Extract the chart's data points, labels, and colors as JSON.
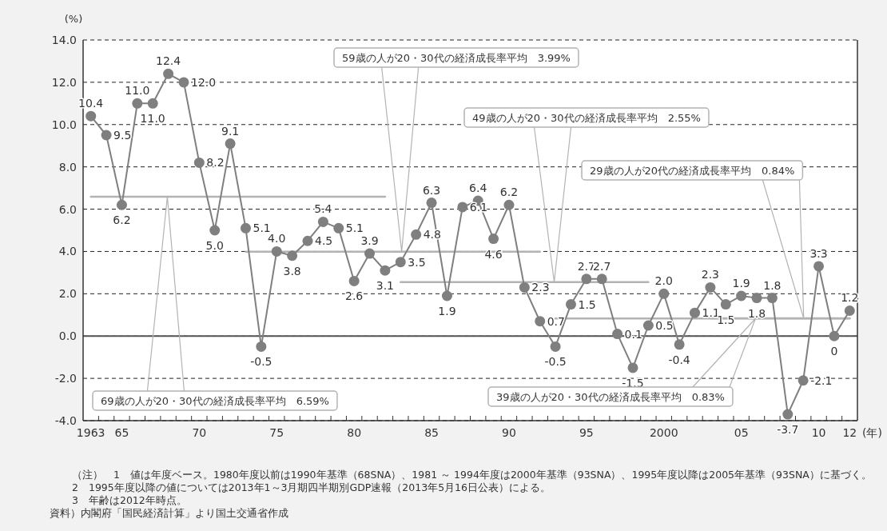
{
  "chart_data": {
    "type": "line",
    "ylabel": "(%)",
    "xlabel": "(年)",
    "x": [
      1963,
      1964,
      1965,
      1966,
      1967,
      1968,
      1969,
      1970,
      1971,
      1972,
      1973,
      1974,
      1975,
      1976,
      1977,
      1978,
      1979,
      1980,
      1981,
      1982,
      1983,
      1984,
      1985,
      1986,
      1987,
      1988,
      1989,
      1990,
      1991,
      1992,
      1993,
      1994,
      1995,
      1996,
      1997,
      1998,
      1999,
      2000,
      2001,
      2002,
      2003,
      2004,
      2005,
      2006,
      2007,
      2008,
      2009,
      2010,
      2011,
      2012
    ],
    "series": [
      {
        "color": "#7f7f7f",
        "marker": "circle",
        "values": [
          10.4,
          9.5,
          6.2,
          11.0,
          11.0,
          12.4,
          12.0,
          8.2,
          5.0,
          9.1,
          5.1,
          -0.5,
          4.0,
          3.8,
          4.5,
          5.4,
          5.1,
          2.6,
          3.9,
          3.1,
          3.5,
          4.8,
          6.3,
          1.9,
          6.1,
          6.4,
          4.6,
          6.2,
          2.3,
          0.7,
          -0.5,
          1.5,
          2.7,
          2.7,
          0.1,
          -1.5,
          0.5,
          2.0,
          -0.4,
          1.1,
          2.3,
          1.5,
          1.9,
          1.8,
          1.8,
          -3.7,
          -2.1,
          3.3,
          0,
          1.2
        ],
        "value_labels": [
          "10.4",
          "9.5",
          "6.2",
          "11.0",
          "11.0",
          "12.4",
          "12.0",
          "8.2",
          "5.0",
          "9.1",
          "5.1",
          "-0.5",
          "4.0",
          "3.8",
          "4.5",
          "5.4",
          "5.1",
          "2.6",
          "3.9",
          "3.1",
          "3.5",
          "4.8",
          "6.3",
          "1.9",
          "6.1",
          "6.4",
          "4.6",
          "6.2",
          "2.3",
          "0.7",
          "-0.5",
          "1.5",
          "2.7",
          "2.7",
          "0.1",
          "-1.5",
          "0.5",
          "2.0",
          "-0.4",
          "1.1",
          "2.3",
          "1.5",
          "1.9",
          "1.8",
          "1.8",
          "-3.7",
          "-2.1",
          "3.3",
          "0",
          "1.2"
        ]
      },
      {
        "name": "69歳の人が20・30代の経済成長率平均　6.59%",
        "color": "#b3b3b3",
        "marker": "none",
        "x": [
          1963,
          1982
        ],
        "values": [
          6.59,
          6.59
        ]
      },
      {
        "name": "59歳の人が20・30代の経済成長率平均　3.99%",
        "color": "#b3b3b3",
        "marker": "none",
        "x": [
          1973,
          1992
        ],
        "values": [
          3.99,
          3.99
        ]
      },
      {
        "name": "49歳の人が20・30代の経済成長率平均　2.55%",
        "color": "#b3b3b3",
        "marker": "none",
        "x": [
          1983,
          1999
        ],
        "values": [
          2.55,
          2.55
        ]
      },
      {
        "name": "39歳の人が20・30代の経済成長率平均　0.83%",
        "color": "#b3b3b3",
        "marker": "none",
        "x": [
          1993,
          2012
        ],
        "values": [
          0.83,
          0.83
        ]
      },
      {
        "name": "29歳の人が20代の経済成長率平均　0.84%",
        "color": "#b3b3b3",
        "marker": "none",
        "x": [
          2003,
          2012
        ],
        "values": [
          0.84,
          0.84
        ]
      }
    ],
    "xlim": [
      1962.5,
      2012.5
    ],
    "xticks": [
      {
        "value": 1963,
        "label": "1963"
      },
      {
        "value": 1965,
        "label": "65"
      },
      {
        "value": 1970,
        "label": "70"
      },
      {
        "value": 1975,
        "label": "75"
      },
      {
        "value": 1980,
        "label": "80"
      },
      {
        "value": 1985,
        "label": "85"
      },
      {
        "value": 1990,
        "label": "90"
      },
      {
        "value": 1995,
        "label": "95"
      },
      {
        "value": 2000,
        "label": "2000"
      },
      {
        "value": 2005,
        "label": "05"
      },
      {
        "value": 2010,
        "label": "10"
      },
      {
        "value": 2012,
        "label": "12"
      },
      {
        "value": 1963.5,
        "label": null
      },
      {
        "value": 1964.5,
        "label": null
      },
      {
        "value": 1965.5,
        "label": null
      },
      {
        "value": 1966.5,
        "label": null
      },
      {
        "value": 1967.5,
        "label": null
      },
      {
        "value": 1968.5,
        "label": null
      },
      {
        "value": 1969.5,
        "label": null
      },
      {
        "value": 1970.5,
        "label": null
      },
      {
        "value": 1971.5,
        "label": null
      },
      {
        "value": 1972.5,
        "label": null
      },
      {
        "value": 1973.5,
        "label": null
      },
      {
        "value": 1974.5,
        "label": null
      },
      {
        "value": 1975.5,
        "label": null
      },
      {
        "value": 1976.5,
        "label": null
      },
      {
        "value": 1977.5,
        "label": null
      },
      {
        "value": 1978.5,
        "label": null
      },
      {
        "value": 1979.5,
        "label": null
      },
      {
        "value": 1980.5,
        "label": null
      },
      {
        "value": 1981.5,
        "label": null
      },
      {
        "value": 1982.5,
        "label": null
      },
      {
        "value": 1983.5,
        "label": null
      },
      {
        "value": 1984.5,
        "label": null
      },
      {
        "value": 1985.5,
        "label": null
      },
      {
        "value": 1986.5,
        "label": null
      },
      {
        "value": 1987.5,
        "label": null
      },
      {
        "value": 1988.5,
        "label": null
      },
      {
        "value": 1989.5,
        "label": null
      },
      {
        "value": 1990.5,
        "label": null
      },
      {
        "value": 1991.5,
        "label": null
      },
      {
        "value": 1992.5,
        "label": null
      },
      {
        "value": 1993.5,
        "label": null
      },
      {
        "value": 1994.5,
        "label": null
      },
      {
        "value": 1995.5,
        "label": null
      },
      {
        "value": 1996.5,
        "label": null
      },
      {
        "value": 1997.5,
        "label": null
      },
      {
        "value": 1998.5,
        "label": null
      },
      {
        "value": 1999.5,
        "label": null
      },
      {
        "value": 2000.5,
        "label": null
      },
      {
        "value": 2001.5,
        "label": null
      },
      {
        "value": 2002.5,
        "label": null
      },
      {
        "value": 2003.5,
        "label": null
      },
      {
        "value": 2004.5,
        "label": null
      },
      {
        "value": 2005.5,
        "label": null
      },
      {
        "value": 2006.5,
        "label": null
      },
      {
        "value": 2007.5,
        "label": null
      },
      {
        "value": 2008.5,
        "label": null
      },
      {
        "value": 2009.5,
        "label": null
      },
      {
        "value": 2010.5,
        "label": null
      },
      {
        "value": 2011.5,
        "label": null
      }
    ],
    "ylim": [
      -4,
      14
    ],
    "yticks": [
      {
        "value": -4,
        "label": "-4.0"
      },
      {
        "value": -2,
        "label": "-2.0"
      },
      {
        "value": 0,
        "label": "0.0"
      },
      {
        "value": 2,
        "label": "2.0"
      },
      {
        "value": 4,
        "label": "4.0"
      },
      {
        "value": 6,
        "label": "6.0"
      },
      {
        "value": 8,
        "label": "8.0"
      },
      {
        "value": 10,
        "label": "10.0"
      },
      {
        "value": 12,
        "label": "12.0"
      },
      {
        "value": 14,
        "label": "14.0"
      }
    ],
    "grid": "y",
    "ref_lines": [
      {
        "axis": "y",
        "value": 0,
        "color": "#555555",
        "line_style": "solid"
      }
    ],
    "legend": false,
    "annotations": [
      "（注）　1　値は年度ベース。1980年度以前は1990年基準（68SNA）、1981 ～ 1994年度は2000年基準（93SNA）、1995年度以降は2005年基準（93SNA）に基づく。",
      "2　1995年度以降の値については2013年1～3月期四半期別GDP速報（2013年5月16日公表）による。",
      "3　年齢は2012年時点。",
      "資料）内閣府「国民経済計算」より国土交通省作成"
    ]
  }
}
